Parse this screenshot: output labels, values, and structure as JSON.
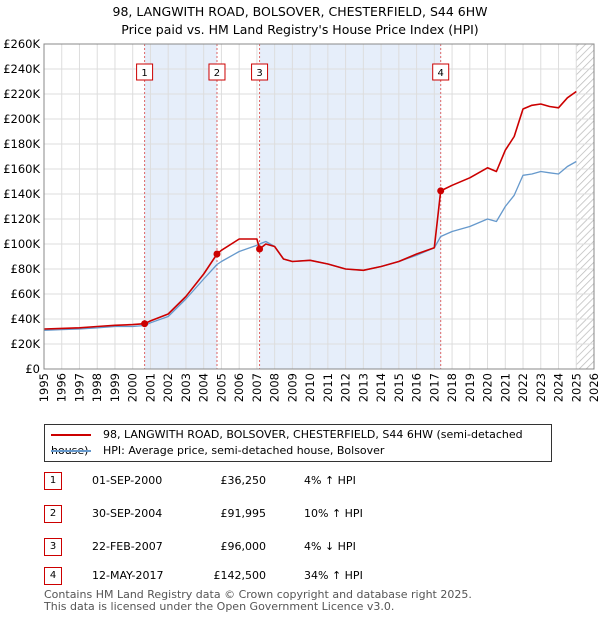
{
  "title_line1": "98, LANGWITH ROAD, BOLSOVER, CHESTERFIELD, S44 6HW",
  "title_line2": "Price paid vs. HM Land Registry's House Price Index (HPI)",
  "colors": {
    "property": "#cc0000",
    "hpi": "#6699cc",
    "shade": "#e6eefa",
    "grid": "#dddddd",
    "marker_dash": "#dd6666"
  },
  "legend": {
    "property_label": "98, LANGWITH ROAD, BOLSOVER, CHESTERFIELD, S44 6HW (semi-detached house)",
    "hpi_label": "HPI: Average price, semi-detached house, Bolsover"
  },
  "transactions": [
    {
      "num": "1",
      "date": "01-SEP-2000",
      "price": "£36,250",
      "hpi": "4% ↑ HPI"
    },
    {
      "num": "2",
      "date": "30-SEP-2004",
      "price": "£91,995",
      "hpi": "10% ↑ HPI"
    },
    {
      "num": "3",
      "date": "22-FEB-2007",
      "price": "£96,000",
      "hpi": "4% ↓ HPI"
    },
    {
      "num": "4",
      "date": "12-MAY-2017",
      "price": "£142,500",
      "hpi": "34% ↑ HPI"
    }
  ],
  "footer_line1": "Contains HM Land Registry data © Crown copyright and database right 2025.",
  "footer_line2": "This data is licensed under the Open Government Licence v3.0.",
  "chart_data": {
    "type": "line",
    "title": "98, LANGWITH ROAD, BOLSOVER, CHESTERFIELD, S44 6HW — Price paid vs. HM Land Registry's House Price Index (HPI)",
    "xlabel": "",
    "ylabel": "",
    "xlim": [
      1995,
      2026
    ],
    "ylim": [
      0,
      260000
    ],
    "x_ticks": [
      1995,
      1996,
      1997,
      1998,
      1999,
      2000,
      2001,
      2002,
      2003,
      2004,
      2005,
      2006,
      2007,
      2008,
      2009,
      2010,
      2011,
      2012,
      2013,
      2014,
      2015,
      2016,
      2017,
      2018,
      2019,
      2020,
      2021,
      2022,
      2023,
      2024,
      2025,
      2026
    ],
    "y_ticks": [
      {
        "value": 0,
        "label": "£0"
      },
      {
        "value": 20000,
        "label": "£20K"
      },
      {
        "value": 40000,
        "label": "£40K"
      },
      {
        "value": 60000,
        "label": "£60K"
      },
      {
        "value": 80000,
        "label": "£80K"
      },
      {
        "value": 100000,
        "label": "£100K"
      },
      {
        "value": 120000,
        "label": "£120K"
      },
      {
        "value": 140000,
        "label": "£140K"
      },
      {
        "value": 160000,
        "label": "£160K"
      },
      {
        "value": 180000,
        "label": "£180K"
      },
      {
        "value": 200000,
        "label": "£200K"
      },
      {
        "value": 220000,
        "label": "£220K"
      },
      {
        "value": 240000,
        "label": "£240K"
      },
      {
        "value": 260000,
        "label": "£260K"
      }
    ],
    "shaded_ranges": [
      [
        2000.67,
        2004.75
      ],
      [
        2007.15,
        2017.36
      ]
    ],
    "hatched_from": 2025.0,
    "sales": [
      {
        "label": "1",
        "x": 2000.67,
        "y": 36250
      },
      {
        "label": "2",
        "x": 2004.75,
        "y": 91995
      },
      {
        "label": "3",
        "x": 2007.15,
        "y": 96000
      },
      {
        "label": "4",
        "x": 2017.36,
        "y": 142500
      }
    ],
    "series": [
      {
        "name": "HPI: Average price, semi-detached house, Bolsover",
        "x": [
          1995,
          1996,
          1997,
          1998,
          1999,
          2000,
          2000.67,
          2001,
          2002,
          2003,
          2004,
          2004.75,
          2005,
          2006,
          2007,
          2007.15,
          2007.5,
          2008,
          2008.5,
          2009,
          2010,
          2011,
          2012,
          2013,
          2014,
          2015,
          2016,
          2017,
          2017.36,
          2018,
          2019,
          2020,
          2020.5,
          2021,
          2021.5,
          2022,
          2022.5,
          2023,
          2023.5,
          2024,
          2024.5,
          2025
        ],
        "values": [
          31000,
          31500,
          32000,
          33000,
          34000,
          34000,
          34800,
          37000,
          42000,
          56000,
          72000,
          83600,
          86000,
          94000,
          99000,
          100000,
          102000,
          98000,
          88000,
          86000,
          87000,
          84000,
          80000,
          79000,
          82000,
          86000,
          91000,
          97000,
          106000,
          110000,
          114000,
          120000,
          118000,
          130000,
          139000,
          155000,
          156000,
          158000,
          157000,
          156000,
          162000,
          166000
        ]
      },
      {
        "name": "98, LANGWITH ROAD, BOLSOVER, CHESTERFIELD, S44 6HW (semi-detached house)",
        "x": [
          1995,
          1996,
          1997,
          1998,
          1999,
          2000,
          2000.67,
          2001,
          2002,
          2003,
          2004,
          2004.75,
          2005,
          2006,
          2007,
          2007.15,
          2007.5,
          2008,
          2008.5,
          2009,
          2010,
          2011,
          2012,
          2013,
          2014,
          2015,
          2016,
          2017,
          2017.36,
          2018,
          2019,
          2020,
          2020.5,
          2021,
          2021.5,
          2022,
          2022.5,
          2023,
          2023.5,
          2024,
          2024.5,
          2025
        ],
        "values": [
          32000,
          32500,
          33000,
          34000,
          35000,
          35500,
          36250,
          38500,
          44000,
          58000,
          76000,
          91995,
          95000,
          104000,
          104000,
          96000,
          100000,
          98000,
          88000,
          86000,
          87000,
          84000,
          80000,
          79000,
          82000,
          86000,
          92000,
          97000,
          142500,
          147000,
          153000,
          161000,
          158000,
          175000,
          186000,
          208000,
          211000,
          212000,
          210000,
          209000,
          217000,
          222000
        ]
      }
    ]
  }
}
